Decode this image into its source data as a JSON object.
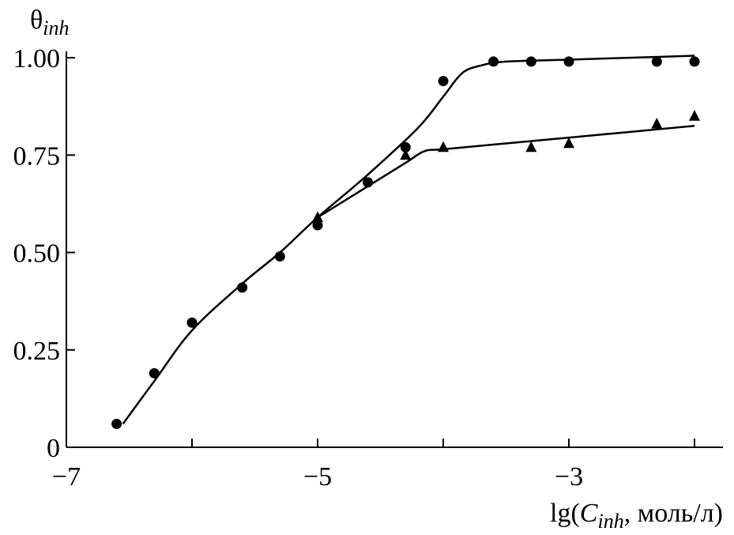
{
  "chart_data": {
    "type": "scatter",
    "xlim": [
      -7,
      -2
    ],
    "ylim": [
      0,
      1.0
    ],
    "x_ticks": [
      -7,
      -5,
      -3
    ],
    "x_tick_labels": [
      "−7",
      "−5",
      "−3"
    ],
    "y_ticks": [
      0,
      0.25,
      0.5,
      0.75,
      1.0
    ],
    "y_tick_labels": [
      "0",
      "0.25",
      "0.50",
      "0.75",
      "1.00"
    ],
    "ylabel": {
      "main": "θ",
      "sub": "inh"
    },
    "xlabel": {
      "prefix": "lg(",
      "var": "C",
      "sub": "inh",
      "suffix": ", моль/л)"
    },
    "grid": false,
    "legend": "none",
    "series": [
      {
        "marker": "circle",
        "points": [
          [
            -6.6,
            0.06
          ],
          [
            -6.3,
            0.19
          ],
          [
            -6.0,
            0.32
          ],
          [
            -5.6,
            0.41
          ],
          [
            -5.3,
            0.49
          ],
          [
            -5.0,
            0.57
          ],
          [
            -4.6,
            0.68
          ],
          [
            -4.3,
            0.77
          ],
          [
            -4.0,
            0.94
          ],
          [
            -3.6,
            0.99
          ],
          [
            -3.3,
            0.99
          ],
          [
            -3.0,
            0.99
          ],
          [
            -2.3,
            0.99
          ],
          [
            -2.0,
            0.99
          ]
        ],
        "fit": [
          [
            -6.55,
            0.06
          ],
          [
            -6.3,
            0.17
          ],
          [
            -6.0,
            0.3
          ],
          [
            -5.6,
            0.42
          ],
          [
            -5.3,
            0.5
          ],
          [
            -5.0,
            0.59
          ],
          [
            -4.6,
            0.7
          ],
          [
            -4.2,
            0.82
          ],
          [
            -4.0,
            0.9
          ],
          [
            -3.85,
            0.96
          ],
          [
            -3.7,
            0.98
          ],
          [
            -3.5,
            0.99
          ],
          [
            -3.0,
            0.995
          ],
          [
            -2.5,
            1.0
          ],
          [
            -2.0,
            1.005
          ]
        ]
      },
      {
        "marker": "triangle",
        "points": [
          [
            -5.0,
            0.59
          ],
          [
            -4.3,
            0.75
          ],
          [
            -4.0,
            0.77
          ],
          [
            -3.3,
            0.77
          ],
          [
            -3.0,
            0.78
          ],
          [
            -2.3,
            0.83
          ],
          [
            -2.0,
            0.85
          ]
        ],
        "fit": [
          [
            -5.0,
            0.59
          ],
          [
            -4.6,
            0.67
          ],
          [
            -4.3,
            0.73
          ],
          [
            -4.15,
            0.76
          ],
          [
            -4.0,
            0.765
          ],
          [
            -3.5,
            0.78
          ],
          [
            -3.0,
            0.795
          ],
          [
            -2.5,
            0.81
          ],
          [
            -2.0,
            0.825
          ]
        ]
      }
    ]
  }
}
